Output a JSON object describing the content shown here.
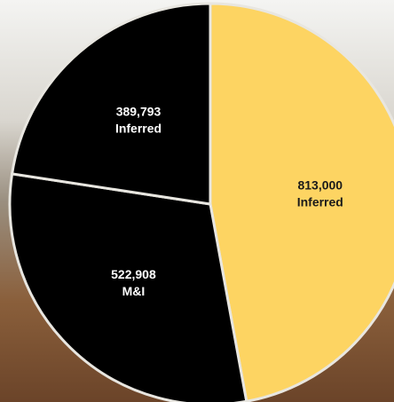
{
  "chart_data": {
    "type": "pie",
    "categories": [
      "Inferred",
      "M&I",
      "Inferred"
    ],
    "values": [
      813000,
      522908,
      389793
    ],
    "value_labels": [
      "813,000",
      "522,908",
      "389,793"
    ],
    "colors": [
      "#fdd462",
      "#000000",
      "#000000"
    ],
    "label_colors": [
      "#1a1a1a",
      "#ffffff",
      "#ffffff"
    ]
  }
}
